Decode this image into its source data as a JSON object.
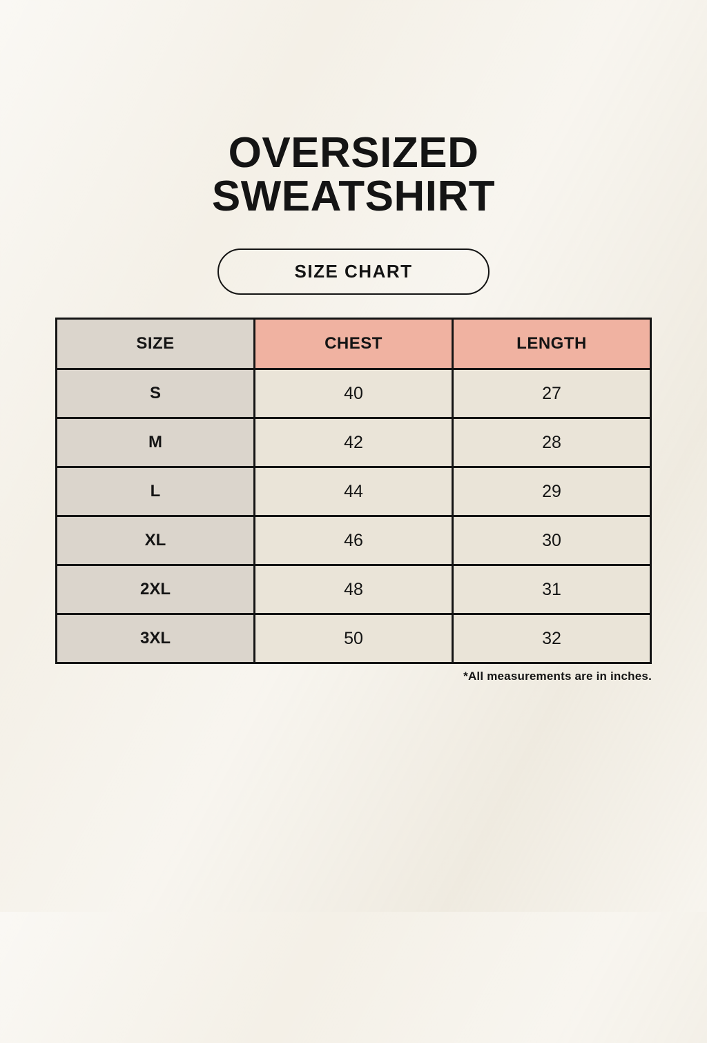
{
  "page": {
    "title": {
      "line1": "OVERSIZED",
      "line2": "SWEATSHIRT"
    }
  },
  "size_chart_button": {
    "label": "SIZE CHART"
  },
  "table": {
    "headers": [
      "SIZE",
      "CHEST",
      "LENGTH"
    ],
    "rows": [
      {
        "size": "S",
        "chest": "40",
        "length": "27"
      },
      {
        "size": "M",
        "chest": "42",
        "length": "28"
      },
      {
        "size": "L",
        "chest": "44",
        "length": "29"
      },
      {
        "size": "XL",
        "chest": "46",
        "length": "30"
      },
      {
        "size": "2XL",
        "chest": "48",
        "length": "31"
      },
      {
        "size": "3XL",
        "chest": "50",
        "length": "32"
      }
    ]
  },
  "footnote": "*All measurements are in inches.",
  "colors": {
    "background": "#f4f0e7",
    "accent_salmon": "#f0b2a1",
    "cell_beige": "#dbd5cc",
    "cell_cream": "#eae4d8",
    "border_black": "#141414",
    "text_black": "#141414"
  }
}
